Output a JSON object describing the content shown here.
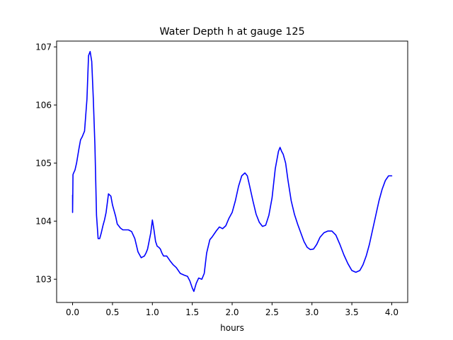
{
  "chart_data": {
    "type": "line",
    "title": "Water Depth h at gauge 125",
    "xlabel": "hours",
    "ylabel": "",
    "xlim": [
      -0.2,
      4.2
    ],
    "ylim": [
      102.6,
      107.1
    ],
    "xticks": [
      0.0,
      0.5,
      1.0,
      1.5,
      2.0,
      2.5,
      3.0,
      3.5,
      4.0
    ],
    "xtick_labels": [
      "0.0",
      "0.5",
      "1.0",
      "1.5",
      "2.0",
      "2.5",
      "3.0",
      "3.5",
      "4.0"
    ],
    "yticks": [
      103,
      104,
      105,
      106,
      107
    ],
    "ytick_labels": [
      "103",
      "104",
      "105",
      "106",
      "107"
    ],
    "grid": false,
    "legend": "none",
    "series": [
      {
        "color": "#0000ff",
        "x": [
          0.0,
          0.0,
          0.003,
          0.005,
          0.01,
          0.03,
          0.05,
          0.08,
          0.1,
          0.12,
          0.15,
          0.18,
          0.2,
          0.22,
          0.24,
          0.26,
          0.28,
          0.3,
          0.32,
          0.34,
          0.36,
          0.38,
          0.4,
          0.42,
          0.45,
          0.48,
          0.5,
          0.52,
          0.54,
          0.56,
          0.6,
          0.63,
          0.66,
          0.7,
          0.74,
          0.78,
          0.82,
          0.86,
          0.9,
          0.92,
          0.94,
          0.98,
          1.0,
          1.02,
          1.04,
          1.06,
          1.08,
          1.1,
          1.12,
          1.14,
          1.18,
          1.22,
          1.26,
          1.3,
          1.35,
          1.4,
          1.44,
          1.47,
          1.5,
          1.52,
          1.55,
          1.58,
          1.62,
          1.65,
          1.68,
          1.72,
          1.75,
          1.8,
          1.84,
          1.88,
          1.92,
          1.96,
          2.0,
          2.04,
          2.08,
          2.12,
          2.16,
          2.19,
          2.22,
          2.26,
          2.3,
          2.34,
          2.38,
          2.42,
          2.46,
          2.5,
          2.54,
          2.58,
          2.6,
          2.62,
          2.64,
          2.67,
          2.7,
          2.74,
          2.78,
          2.82,
          2.86,
          2.9,
          2.94,
          2.98,
          3.02,
          3.06,
          3.1,
          3.15,
          3.2,
          3.25,
          3.3,
          3.35,
          3.4,
          3.45,
          3.5,
          3.55,
          3.6,
          3.64,
          3.68,
          3.72,
          3.76,
          3.8,
          3.84,
          3.88,
          3.92,
          3.96,
          4.0
        ],
        "y": [
          104.45,
          104.15,
          104.5,
          104.8,
          104.82,
          104.88,
          105.0,
          105.25,
          105.4,
          105.45,
          105.55,
          106.1,
          106.85,
          106.92,
          106.75,
          106.1,
          105.3,
          104.1,
          103.7,
          103.7,
          103.8,
          103.92,
          104.02,
          104.15,
          104.47,
          104.43,
          104.28,
          104.18,
          104.08,
          103.95,
          103.88,
          103.85,
          103.85,
          103.85,
          103.82,
          103.7,
          103.47,
          103.37,
          103.4,
          103.45,
          103.52,
          103.8,
          104.02,
          103.85,
          103.65,
          103.57,
          103.55,
          103.52,
          103.45,
          103.4,
          103.4,
          103.32,
          103.25,
          103.2,
          103.1,
          103.07,
          103.05,
          102.97,
          102.85,
          102.79,
          102.93,
          103.02,
          103.0,
          103.1,
          103.45,
          103.68,
          103.73,
          103.83,
          103.9,
          103.87,
          103.92,
          104.05,
          104.15,
          104.35,
          104.6,
          104.78,
          104.83,
          104.78,
          104.6,
          104.35,
          104.12,
          103.98,
          103.91,
          103.93,
          104.1,
          104.4,
          104.9,
          105.2,
          105.27,
          105.2,
          105.15,
          105.0,
          104.7,
          104.35,
          104.12,
          103.95,
          103.8,
          103.65,
          103.55,
          103.51,
          103.52,
          103.6,
          103.72,
          103.8,
          103.83,
          103.83,
          103.76,
          103.6,
          103.42,
          103.27,
          103.15,
          103.12,
          103.15,
          103.25,
          103.4,
          103.6,
          103.85,
          104.1,
          104.35,
          104.55,
          104.7,
          104.78,
          104.78
        ]
      }
    ]
  }
}
